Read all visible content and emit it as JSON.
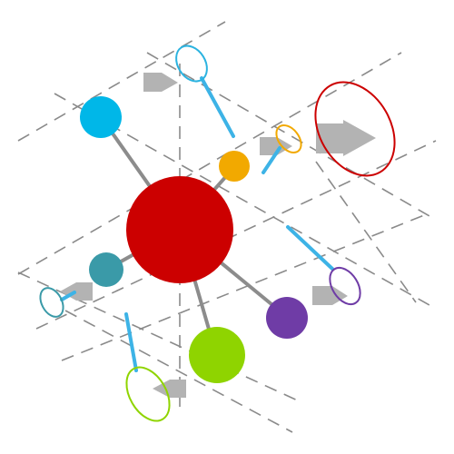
{
  "diagram": {
    "colors": {
      "hub": "#cc0000",
      "spoke": "#8c8c8c",
      "grid": "#8a8a8a",
      "pin": "#3db3e6",
      "arrow": "#b3b3b3",
      "blue_node": "#00b7e8",
      "orange_node": "#f2a900",
      "teal_node": "#3a9aa8",
      "purple_node": "#6f3ca6",
      "green_node": "#8fd400",
      "red_ring": "#cc0000",
      "purple_ring": "#6f3ca6",
      "green_ring": "#8fd400",
      "orange_ring": "#f2a900"
    },
    "icons": [
      "grey-arrow-icon"
    ]
  }
}
